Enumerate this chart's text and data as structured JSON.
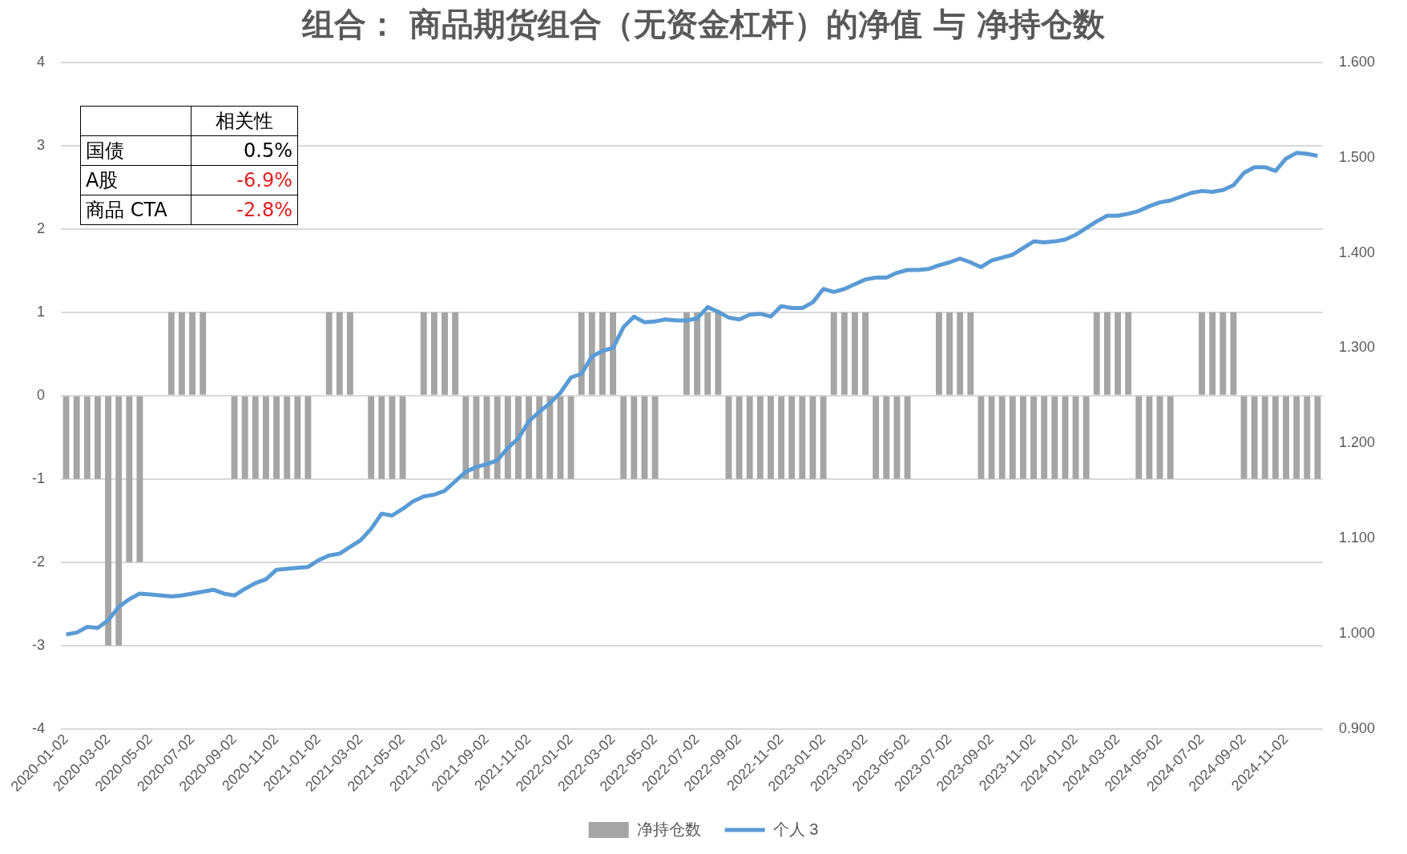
{
  "chart_data": {
    "type": "bar",
    "title": "组合： 商品期货组合（无资金杠杆）的净值 与 净持仓数",
    "categories": [
      "2020-01-02",
      null,
      null,
      null,
      "2020-03-02",
      null,
      null,
      null,
      "2020-05-02",
      null,
      null,
      null,
      "2020-07-02",
      null,
      null,
      null,
      "2020-09-02",
      null,
      null,
      null,
      "2020-11-02",
      null,
      null,
      null,
      "2021-01-02",
      null,
      null,
      null,
      "2021-03-02",
      null,
      null,
      null,
      "2021-05-02",
      null,
      null,
      null,
      "2021-07-02",
      null,
      null,
      null,
      "2021-09-02",
      null,
      null,
      null,
      "2021-11-02",
      null,
      null,
      null,
      "2022-01-02",
      null,
      null,
      null,
      "2022-03-02",
      null,
      null,
      null,
      "2022-05-02",
      null,
      null,
      null,
      "2022-07-02",
      null,
      null,
      null,
      "2022-09-02",
      null,
      null,
      null,
      "2022-11-02",
      null,
      null,
      null,
      "2023-01-02",
      null,
      null,
      null,
      "2023-03-02",
      null,
      null,
      null,
      "2023-05-02",
      null,
      null,
      null,
      "2023-07-02",
      null,
      null,
      null,
      "2023-09-02",
      null,
      null,
      null,
      "2023-11-02",
      null,
      null,
      null,
      "2024-01-02",
      null,
      null,
      null,
      "2024-03-02",
      null,
      null,
      null,
      "2024-05-02",
      null,
      null,
      null,
      "2024-07-02",
      null,
      null,
      null,
      "2024-09-02",
      null,
      null,
      null,
      "2024-11-02",
      null,
      null,
      null
    ],
    "series": [
      {
        "name": "净持仓数",
        "color": "#a5a5a5",
        "values": [
          -1,
          -1,
          -1,
          -1,
          -3,
          -3,
          -2,
          -2,
          0,
          0,
          1,
          1,
          1,
          1,
          0,
          0,
          -1,
          -1,
          -1,
          -1,
          -1,
          -1,
          -1,
          -1,
          0,
          1,
          1,
          1,
          0,
          -1,
          -1,
          -1,
          -1,
          0,
          1,
          1,
          1,
          1,
          -1,
          -1,
          -1,
          -1,
          -1,
          -1,
          -1,
          -1,
          -1,
          -1,
          -1,
          1,
          1,
          1,
          1,
          -1,
          -1,
          -1,
          -1,
          0,
          0,
          1,
          1,
          1,
          1,
          -1,
          -1,
          -1,
          -1,
          -1,
          -1,
          -1,
          -1,
          -1,
          -1,
          1,
          1,
          1,
          1,
          -1,
          -1,
          -1,
          -1,
          0,
          0,
          1,
          1,
          1,
          1,
          -1,
          -1,
          -1,
          -1,
          -1,
          -1,
          -1,
          -1,
          -1,
          -1,
          -1,
          1,
          1,
          1,
          1,
          -1,
          -1,
          -1,
          -1,
          0,
          0,
          1,
          1,
          1,
          1,
          -1,
          -1,
          -1,
          -1,
          -1,
          -1,
          -1,
          -1
        ]
      },
      {
        "name": "个人 3",
        "type": "line",
        "axis": "y2",
        "color": "#5b9bd5",
        "values": [
          0.999,
          1.001,
          1.007,
          1.006,
          1.014,
          1.028,
          1.036,
          1.042,
          1.041,
          1.04,
          1.039,
          1.04,
          1.042,
          1.044,
          1.046,
          1.042,
          1.04,
          1.047,
          1.053,
          1.057,
          1.067,
          1.068,
          1.069,
          1.07,
          1.077,
          1.082,
          1.084,
          1.091,
          1.098,
          1.11,
          1.126,
          1.124,
          1.131,
          1.139,
          1.144,
          1.146,
          1.15,
          1.16,
          1.17,
          1.175,
          1.178,
          1.182,
          1.195,
          1.205,
          1.223,
          1.233,
          1.242,
          1.253,
          1.269,
          1.273,
          1.291,
          1.297,
          1.3,
          1.322,
          1.333,
          1.327,
          1.328,
          1.33,
          1.329,
          1.329,
          1.331,
          1.343,
          1.338,
          1.332,
          1.33,
          1.335,
          1.336,
          1.333,
          1.344,
          1.342,
          1.342,
          1.348,
          1.362,
          1.359,
          1.362,
          1.367,
          1.372,
          1.374,
          1.374,
          1.379,
          1.382,
          1.382,
          1.383,
          1.387,
          1.39,
          1.394,
          1.39,
          1.385,
          1.392,
          1.395,
          1.398,
          1.405,
          1.412,
          1.411,
          1.412,
          1.414,
          1.419,
          1.426,
          1.433,
          1.439,
          1.439,
          1.441,
          1.444,
          1.449,
          1.453,
          1.455,
          1.459,
          1.463,
          1.465,
          1.464,
          1.466,
          1.471,
          1.484,
          1.49,
          1.49,
          1.486,
          1.499,
          1.505,
          1.504,
          1.502
        ]
      }
    ],
    "ylim": [
      -4,
      4
    ],
    "yticks": [
      -4,
      -3,
      -2,
      -1,
      0,
      1,
      2,
      3,
      4
    ],
    "y2lim": [
      0.9,
      1.6
    ],
    "y2ticks": [
      {
        "value": 0.9,
        "label": "0.900"
      },
      {
        "value": 1.0,
        "label": "1.000"
      },
      {
        "value": 1.1,
        "label": "1.100"
      },
      {
        "value": 1.2,
        "label": "1.200"
      },
      {
        "value": 1.3,
        "label": "1.300"
      },
      {
        "value": 1.4,
        "label": "1.400"
      },
      {
        "value": 1.5,
        "label": "1.500"
      },
      {
        "value": 1.6,
        "label": "1.600"
      }
    ],
    "grid": "y",
    "legend": "bottom",
    "marker": "none",
    "annotations": [
      "相关性",
      "国债",
      "0.5%",
      "A股",
      "-6.9%",
      "商品 CTA",
      "-2.8%"
    ]
  }
}
